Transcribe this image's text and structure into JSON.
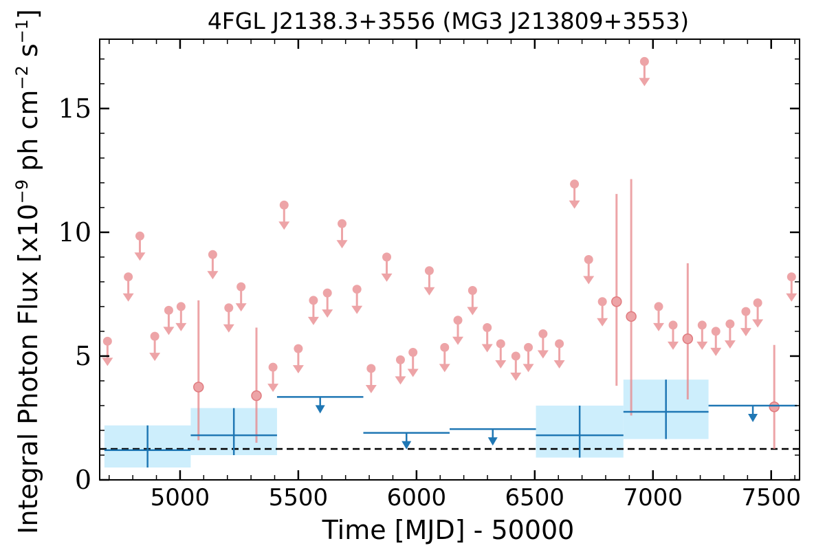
{
  "chart_data": {
    "type": "scatter",
    "title": "4FGL J2138.3+3556 (MG3 J213809+3553)",
    "xlabel": "Time [MJD] - 50000",
    "ylabel_prefix": "Integral Photon Flux [x10",
    "ylabel_exp1": "−9",
    "ylabel_mid": " ph cm",
    "ylabel_exp2": "−2",
    "ylabel_mid2": " s",
    "ylabel_exp3": "−1",
    "ylabel_suffix": "]",
    "xlim": [
      4660,
      7620
    ],
    "ylim": [
      0,
      17.8
    ],
    "xticks": [
      5000,
      5500,
      6000,
      6500,
      7000,
      7500
    ],
    "xtick_labels": [
      "5000",
      "5500",
      "6000",
      "6500",
      "7000",
      "7500"
    ],
    "yticks": [
      0,
      5,
      10,
      15
    ],
    "ytick_labels": [
      "0",
      "5",
      "10",
      "15"
    ],
    "colors": {
      "short_bins": "#e8868a",
      "long_bins": "#1f77b4",
      "error_band": "#cdeefc",
      "mean_line": "#000000"
    },
    "baseline_flux": 1.25,
    "short_bin_upper_limits": [
      {
        "x": 4693,
        "y": 5.6
      },
      {
        "x": 4781,
        "y": 8.2
      },
      {
        "x": 4830,
        "y": 9.85
      },
      {
        "x": 4893,
        "y": 5.8
      },
      {
        "x": 4952,
        "y": 6.85
      },
      {
        "x": 5004,
        "y": 7.0
      },
      {
        "x": 5138,
        "y": 9.1
      },
      {
        "x": 5206,
        "y": 6.95
      },
      {
        "x": 5258,
        "y": 7.8
      },
      {
        "x": 5393,
        "y": 4.55
      },
      {
        "x": 5440,
        "y": 11.1
      },
      {
        "x": 5500,
        "y": 5.3
      },
      {
        "x": 5564,
        "y": 7.25
      },
      {
        "x": 5623,
        "y": 7.55
      },
      {
        "x": 5685,
        "y": 10.35
      },
      {
        "x": 5748,
        "y": 7.7
      },
      {
        "x": 5808,
        "y": 4.5
      },
      {
        "x": 5874,
        "y": 9.0
      },
      {
        "x": 5932,
        "y": 4.85
      },
      {
        "x": 5985,
        "y": 5.15
      },
      {
        "x": 6054,
        "y": 8.45
      },
      {
        "x": 6119,
        "y": 5.35
      },
      {
        "x": 6175,
        "y": 6.45
      },
      {
        "x": 6237,
        "y": 7.65
      },
      {
        "x": 6299,
        "y": 6.15
      },
      {
        "x": 6356,
        "y": 5.5
      },
      {
        "x": 6420,
        "y": 5.0
      },
      {
        "x": 6473,
        "y": 5.35
      },
      {
        "x": 6535,
        "y": 5.9
      },
      {
        "x": 6604,
        "y": 5.5
      },
      {
        "x": 6668,
        "y": 11.95
      },
      {
        "x": 6728,
        "y": 8.9
      },
      {
        "x": 6786,
        "y": 7.2
      },
      {
        "x": 7024,
        "y": 7.0
      },
      {
        "x": 7085,
        "y": 6.25
      },
      {
        "x": 7208,
        "y": 6.25
      },
      {
        "x": 7266,
        "y": 6.0
      },
      {
        "x": 7326,
        "y": 6.3
      },
      {
        "x": 7393,
        "y": 6.8
      },
      {
        "x": 7443,
        "y": 7.15
      },
      {
        "x": 7586,
        "y": 8.2
      },
      {
        "x": 6964,
        "y": 16.9
      }
    ],
    "short_bin_detections": [
      {
        "x": 5078,
        "y": 3.75,
        "y_low": 1.6,
        "y_high": 7.25
      },
      {
        "x": 5323,
        "y": 3.4,
        "y_low": 1.5,
        "y_high": 6.15
      },
      {
        "x": 6846,
        "y": 7.2,
        "y_low": 3.8,
        "y_high": 11.55
      },
      {
        "x": 6908,
        "y": 6.6,
        "y_low": 2.6,
        "y_high": 12.15
      },
      {
        "x": 7147,
        "y": 5.7,
        "y_low": 3.25,
        "y_high": 8.75
      },
      {
        "x": 7513,
        "y": 2.95,
        "y_low": 1.25,
        "y_high": 5.45
      }
    ],
    "long_bin_detections": [
      {
        "x0": 4680,
        "x1": 5045,
        "y": 1.2,
        "y_low": 0.5,
        "y_high": 2.2
      },
      {
        "x0": 5045,
        "x1": 5410,
        "y": 1.8,
        "y_low": 1.0,
        "y_high": 2.9
      },
      {
        "x0": 6505,
        "x1": 6875,
        "y": 1.8,
        "y_low": 0.9,
        "y_high": 3.0
      },
      {
        "x0": 6875,
        "x1": 7235,
        "y": 2.75,
        "y_low": 1.65,
        "y_high": 4.05
      }
    ],
    "long_bin_upper_limits": [
      {
        "x0": 5410,
        "x1": 5775,
        "y": 3.35
      },
      {
        "x0": 5775,
        "x1": 6140,
        "y": 1.9
      },
      {
        "x0": 6140,
        "x1": 6505,
        "y": 2.05
      },
      {
        "x0": 7235,
        "x1": 7610,
        "y": 3.0
      }
    ]
  }
}
